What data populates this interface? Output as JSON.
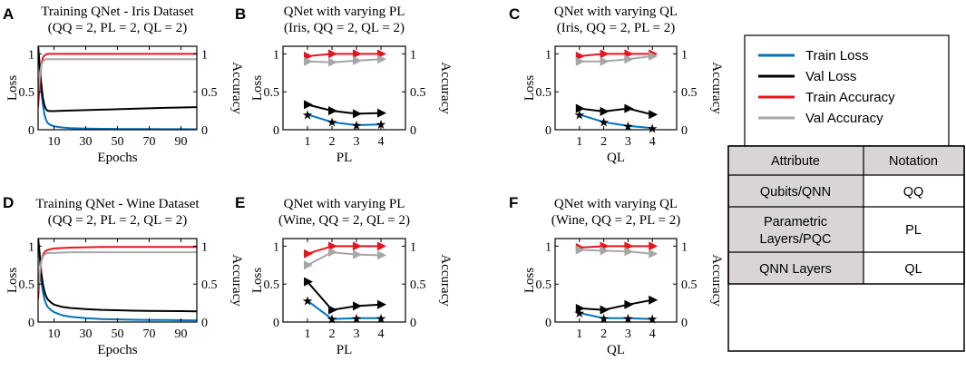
{
  "colors": {
    "train_loss": "#0072BD",
    "val_loss": "#000000",
    "train_acc": "#E8141C",
    "val_acc": "#A6A6A6",
    "table_header_bg": "#D9D5D5"
  },
  "legend": {
    "items": [
      {
        "label": "Train Loss",
        "color": "#0072BD"
      },
      {
        "label": "Val Loss",
        "color": "#000000"
      },
      {
        "label": "Train Accuracy",
        "color": "#E8141C"
      },
      {
        "label": "Val Accuracy",
        "color": "#A6A6A6"
      }
    ]
  },
  "table": {
    "headers": [
      "Attribute",
      "Notation"
    ],
    "rows": [
      {
        "attribute": [
          "Qubits/QNN"
        ],
        "notation": "QQ"
      },
      {
        "attribute": [
          "Parametric",
          "Layers/PQC"
        ],
        "notation": "PL"
      },
      {
        "attribute": [
          "QNN Layers"
        ],
        "notation": "QL"
      }
    ]
  },
  "chart_data": [
    {
      "panel": "A",
      "type": "line",
      "title": [
        "Training QNet - Iris Dataset",
        "(QQ = 2, PL = 2, QL = 2)"
      ],
      "xlabel": "Epochs",
      "ylabel": "Loss",
      "y2label": "Accuracy",
      "xlim": [
        0,
        100
      ],
      "ylim": [
        0,
        1.1
      ],
      "y2lim": [
        0,
        1.1
      ],
      "xticks": [
        10,
        30,
        50,
        70,
        90
      ],
      "yticks": [
        0,
        0.5,
        1
      ],
      "y2ticks": [
        0,
        0.5,
        1
      ],
      "series": [
        {
          "name": "Train Loss",
          "axis": "left",
          "x": [
            0,
            1,
            2,
            3,
            4,
            5,
            6,
            8,
            10,
            15,
            20,
            30,
            40,
            50,
            60,
            70,
            80,
            90,
            100
          ],
          "values": [
            1.1,
            0.8,
            0.5,
            0.33,
            0.2,
            0.13,
            0.09,
            0.06,
            0.045,
            0.03,
            0.022,
            0.015,
            0.012,
            0.01,
            0.009,
            0.008,
            0.007,
            0.007,
            0.006
          ]
        },
        {
          "name": "Val Loss",
          "axis": "left",
          "x": [
            0,
            1,
            2,
            3,
            4,
            5,
            6,
            8,
            10,
            15,
            20,
            30,
            40,
            50,
            60,
            70,
            80,
            90,
            100
          ],
          "values": [
            1.1,
            0.85,
            0.6,
            0.42,
            0.32,
            0.27,
            0.25,
            0.245,
            0.245,
            0.25,
            0.252,
            0.258,
            0.264,
            0.27,
            0.276,
            0.282,
            0.288,
            0.293,
            0.298
          ]
        },
        {
          "name": "Train Accuracy",
          "axis": "right",
          "x": [
            0,
            1,
            2,
            3,
            4,
            5,
            6,
            8,
            10,
            20,
            40,
            60,
            80,
            100
          ],
          "values": [
            0.3,
            0.6,
            0.85,
            0.95,
            0.98,
            0.99,
            1.0,
            1.0,
            1.0,
            1.0,
            1.0,
            1.0,
            1.0,
            1.0
          ]
        },
        {
          "name": "Val Accuracy",
          "axis": "right",
          "x": [
            0,
            1,
            2,
            3,
            4,
            5,
            6,
            8,
            10,
            20,
            40,
            60,
            80,
            100
          ],
          "values": [
            0.5,
            0.7,
            0.85,
            0.9,
            0.92,
            0.93,
            0.93,
            0.93,
            0.93,
            0.93,
            0.93,
            0.93,
            0.93,
            0.93
          ]
        }
      ]
    },
    {
      "panel": "B",
      "type": "line",
      "title": [
        "QNet with varying PL",
        "(Iris, QQ = 2, QL = 2)"
      ],
      "xlabel": "PL",
      "ylabel": "Loss",
      "y2label": "Accuracy",
      "xlim": [
        0,
        5
      ],
      "ylim": [
        0,
        1.1
      ],
      "y2lim": [
        0,
        1.1
      ],
      "xticks": [
        1,
        2,
        3,
        4
      ],
      "yticks": [
        0,
        0.5,
        1
      ],
      "y2ticks": [
        0,
        0.5,
        1
      ],
      "x": [
        1,
        2,
        3,
        4
      ],
      "series": [
        {
          "name": "Train Loss",
          "axis": "left",
          "marker": "star",
          "values": [
            0.2,
            0.1,
            0.06,
            0.07
          ]
        },
        {
          "name": "Val Loss",
          "axis": "left",
          "marker": "triangle",
          "values": [
            0.33,
            0.25,
            0.21,
            0.22
          ]
        },
        {
          "name": "Train Accuracy",
          "axis": "right",
          "marker": "triangle",
          "values": [
            0.97,
            1.0,
            1.0,
            1.0
          ]
        },
        {
          "name": "Val Accuracy",
          "axis": "right",
          "marker": "triangle",
          "values": [
            0.9,
            0.89,
            0.91,
            0.93
          ]
        }
      ]
    },
    {
      "panel": "C",
      "type": "line",
      "title": [
        "QNet with varying QL",
        "(Iris, QQ = 2, PL = 2)"
      ],
      "xlabel": "QL",
      "ylabel": "Loss",
      "y2label": "Accuracy",
      "xlim": [
        0,
        5
      ],
      "ylim": [
        0,
        1.1
      ],
      "y2lim": [
        0,
        1.1
      ],
      "xticks": [
        1,
        2,
        3,
        4
      ],
      "yticks": [
        0,
        0.5,
        1
      ],
      "y2ticks": [
        0,
        0.5,
        1
      ],
      "x": [
        1,
        2,
        3,
        4
      ],
      "series": [
        {
          "name": "Train Loss",
          "axis": "left",
          "marker": "star",
          "values": [
            0.2,
            0.1,
            0.05,
            0.02
          ]
        },
        {
          "name": "Val Loss",
          "axis": "left",
          "marker": "triangle",
          "values": [
            0.28,
            0.24,
            0.28,
            0.2
          ]
        },
        {
          "name": "Train Accuracy",
          "axis": "right",
          "marker": "triangle",
          "values": [
            0.97,
            1.0,
            1.0,
            1.0
          ]
        },
        {
          "name": "Val Accuracy",
          "axis": "right",
          "marker": "triangle",
          "values": [
            0.9,
            0.9,
            0.93,
            0.97
          ]
        }
      ]
    },
    {
      "panel": "D",
      "type": "line",
      "title": [
        "Training QNet - Wine Dataset",
        "(QQ = 2, PL = 2, QL = 2)"
      ],
      "xlabel": "Epochs",
      "ylabel": "Loss",
      "y2label": "Accuracy",
      "xlim": [
        0,
        100
      ],
      "ylim": [
        0,
        1.1
      ],
      "y2lim": [
        0,
        1.1
      ],
      "xticks": [
        10,
        30,
        50,
        70,
        90
      ],
      "yticks": [
        0,
        0.5,
        1
      ],
      "y2ticks": [
        0,
        0.5,
        1
      ],
      "series": [
        {
          "name": "Train Loss",
          "axis": "left",
          "x": [
            0,
            1,
            2,
            3,
            4,
            5,
            6,
            8,
            10,
            15,
            20,
            30,
            40,
            50,
            60,
            70,
            80,
            90,
            100
          ],
          "values": [
            1.1,
            0.85,
            0.55,
            0.4,
            0.3,
            0.24,
            0.2,
            0.16,
            0.13,
            0.09,
            0.07,
            0.05,
            0.04,
            0.035,
            0.03,
            0.028,
            0.026,
            0.024,
            0.022
          ]
        },
        {
          "name": "Val Loss",
          "axis": "left",
          "x": [
            0,
            1,
            2,
            3,
            4,
            5,
            6,
            8,
            10,
            15,
            20,
            30,
            40,
            50,
            60,
            70,
            80,
            90,
            100
          ],
          "values": [
            1.1,
            0.9,
            0.65,
            0.5,
            0.4,
            0.34,
            0.3,
            0.26,
            0.23,
            0.2,
            0.185,
            0.17,
            0.16,
            0.155,
            0.15,
            0.147,
            0.145,
            0.143,
            0.14
          ]
        },
        {
          "name": "Train Accuracy",
          "axis": "right",
          "x": [
            0,
            1,
            2,
            3,
            4,
            5,
            6,
            8,
            10,
            20,
            40,
            60,
            80,
            100
          ],
          "values": [
            0.3,
            0.6,
            0.8,
            0.88,
            0.92,
            0.94,
            0.95,
            0.96,
            0.97,
            0.98,
            0.99,
            0.99,
            0.99,
            0.99
          ]
        },
        {
          "name": "Val Accuracy",
          "axis": "right",
          "x": [
            0,
            1,
            2,
            3,
            4,
            5,
            6,
            8,
            10,
            20,
            40,
            60,
            80,
            100
          ],
          "values": [
            0.4,
            0.65,
            0.8,
            0.86,
            0.89,
            0.9,
            0.91,
            0.91,
            0.91,
            0.92,
            0.92,
            0.92,
            0.92,
            0.92
          ]
        }
      ]
    },
    {
      "panel": "E",
      "type": "line",
      "title": [
        "QNet with varying PL",
        "(Wine, QQ = 2, QL = 2)"
      ],
      "xlabel": "PL",
      "ylabel": "Loss",
      "y2label": "Accuracy",
      "xlim": [
        0,
        5
      ],
      "ylim": [
        0,
        1.1
      ],
      "y2lim": [
        0,
        1.1
      ],
      "xticks": [
        1,
        2,
        3,
        4
      ],
      "yticks": [
        0,
        0.5,
        1
      ],
      "y2ticks": [
        0,
        0.5,
        1
      ],
      "x": [
        1,
        2,
        3,
        4
      ],
      "series": [
        {
          "name": "Train Loss",
          "axis": "left",
          "marker": "star",
          "values": [
            0.28,
            0.04,
            0.05,
            0.05
          ]
        },
        {
          "name": "Val Loss",
          "axis": "left",
          "marker": "triangle",
          "values": [
            0.53,
            0.16,
            0.21,
            0.23
          ]
        },
        {
          "name": "Train Accuracy",
          "axis": "right",
          "marker": "triangle",
          "values": [
            0.9,
            1.0,
            1.0,
            1.0
          ]
        },
        {
          "name": "Val Accuracy",
          "axis": "right",
          "marker": "triangle",
          "values": [
            0.75,
            0.92,
            0.89,
            0.88
          ]
        }
      ]
    },
    {
      "panel": "F",
      "type": "line",
      "title": [
        "QNet with varying QL",
        "(Wine, QQ = 2, PL = 2)"
      ],
      "xlabel": "QL",
      "ylabel": "Loss",
      "y2label": "Accuracy",
      "xlim": [
        0,
        5
      ],
      "ylim": [
        0,
        1.1
      ],
      "y2lim": [
        0,
        1.1
      ],
      "xticks": [
        1,
        2,
        3,
        4
      ],
      "yticks": [
        0,
        0.5,
        1
      ],
      "y2ticks": [
        0,
        0.5,
        1
      ],
      "x": [
        1,
        2,
        3,
        4
      ],
      "series": [
        {
          "name": "Train Loss",
          "axis": "left",
          "marker": "star",
          "values": [
            0.12,
            0.05,
            0.05,
            0.04
          ]
        },
        {
          "name": "Val Loss",
          "axis": "left",
          "marker": "triangle",
          "values": [
            0.18,
            0.16,
            0.23,
            0.29
          ]
        },
        {
          "name": "Train Accuracy",
          "axis": "right",
          "marker": "triangle",
          "values": [
            0.98,
            1.0,
            1.0,
            1.0
          ]
        },
        {
          "name": "Val Accuracy",
          "axis": "right",
          "marker": "triangle",
          "values": [
            0.95,
            0.94,
            0.93,
            0.9
          ]
        }
      ]
    }
  ]
}
